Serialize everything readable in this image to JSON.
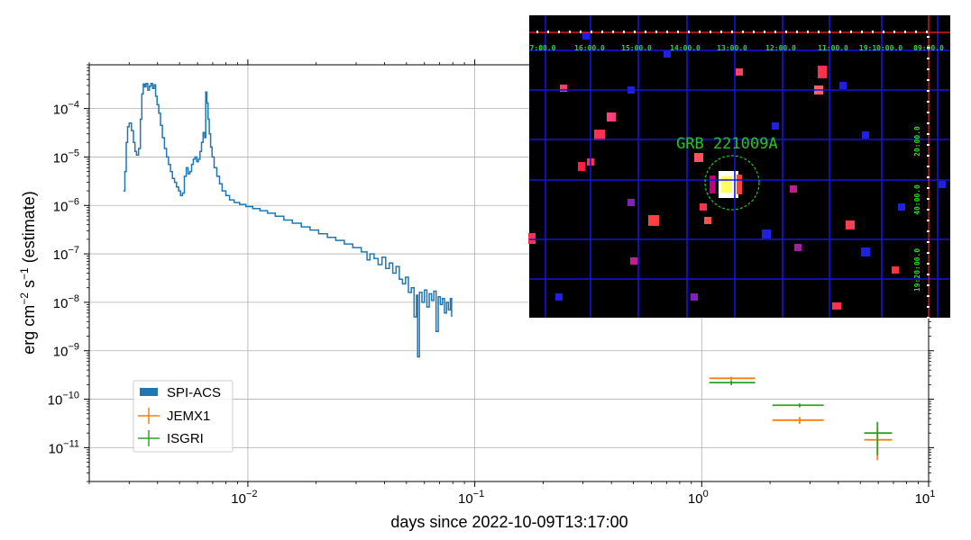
{
  "chart_data": {
    "type": "line",
    "x_scale": "log",
    "y_scale": "log",
    "xlim": [
      0.002,
      10
    ],
    "ylim": [
      2e-12,
      0.0008
    ],
    "xlabel": "days since 2022-10-09T13:17:00",
    "ylabel_parts": {
      "main": "erg cm",
      "exp1": "−2",
      "mid": " s",
      "exp2": "−1",
      "suffix": " (estimate)"
    },
    "x_ticks": [
      {
        "value": 0.01,
        "base": "10",
        "exp": "−2"
      },
      {
        "value": 0.1,
        "base": "10",
        "exp": "−1"
      },
      {
        "value": 1,
        "base": "10",
        "exp": "0"
      },
      {
        "value": 10,
        "base": "10",
        "exp": "1"
      }
    ],
    "y_ticks": [
      {
        "value": 0.0001,
        "base": "10",
        "exp": "−4"
      },
      {
        "value": 1e-05,
        "base": "10",
        "exp": "−5"
      },
      {
        "value": 1e-06,
        "base": "10",
        "exp": "−6"
      },
      {
        "value": 1e-07,
        "base": "10",
        "exp": "−7"
      },
      {
        "value": 1e-08,
        "base": "10",
        "exp": "−8"
      },
      {
        "value": 1e-09,
        "base": "10",
        "exp": "−9"
      },
      {
        "value": 1e-10,
        "base": "10",
        "exp": "−10"
      },
      {
        "value": 1e-11,
        "base": "10",
        "exp": "−11"
      }
    ],
    "grid": true,
    "legend_position": "lower-left",
    "series": [
      {
        "name": "SPI-ACS",
        "style": "step",
        "color": "#1f77b4",
        "points": [
          [
            0.00283,
            2e-06
          ],
          [
            0.00287,
            5e-06
          ],
          [
            0.00291,
            2e-05
          ],
          [
            0.00295,
            4.2e-05
          ],
          [
            0.003,
            5e-05
          ],
          [
            0.00307,
            3.5e-05
          ],
          [
            0.00313,
            2e-05
          ],
          [
            0.00318,
            1.3e-05
          ],
          [
            0.00323,
            1.1e-05
          ],
          [
            0.0033,
            1.5e-05
          ],
          [
            0.00336,
            6e-05
          ],
          [
            0.00341,
            0.0002
          ],
          [
            0.00346,
            0.00032
          ],
          [
            0.00351,
            0.00028
          ],
          [
            0.00356,
            0.00033
          ],
          [
            0.00362,
            0.00024
          ],
          [
            0.00368,
            0.00029
          ],
          [
            0.00374,
            0.00033
          ],
          [
            0.0038,
            0.00026
          ],
          [
            0.00386,
            0.00031
          ],
          [
            0.00392,
            0.00018
          ],
          [
            0.00398,
            0.00012
          ],
          [
            0.00405,
            8e-05
          ],
          [
            0.00412,
            4.5e-05
          ],
          [
            0.0042,
            2.5e-05
          ],
          [
            0.00429,
            1.5e-05
          ],
          [
            0.00438,
            1e-05
          ],
          [
            0.00447,
            7e-06
          ],
          [
            0.00456,
            5e-06
          ],
          [
            0.00465,
            3.6e-06
          ],
          [
            0.00475,
            3e-06
          ],
          [
            0.00485,
            2.4e-06
          ],
          [
            0.00495,
            2e-06
          ],
          [
            0.00505,
            1.6e-06
          ],
          [
            0.00515,
            1.8e-06
          ],
          [
            0.00525,
            4e-06
          ],
          [
            0.00535,
            6e-06
          ],
          [
            0.00545,
            4.5e-06
          ],
          [
            0.00555,
            5e-06
          ],
          [
            0.00565,
            7e-06
          ],
          [
            0.00575,
            9e-06
          ],
          [
            0.00585,
            1e-05
          ],
          [
            0.00595,
            8e-06
          ],
          [
            0.00605,
            9e-06
          ],
          [
            0.00615,
            1.3e-05
          ],
          [
            0.00625,
            2e-05
          ],
          [
            0.00635,
            3.2e-05
          ],
          [
            0.00645,
            2.5e-05
          ],
          [
            0.00652,
            0.00022
          ],
          [
            0.0066,
            0.00013
          ],
          [
            0.00668,
            6e-05
          ],
          [
            0.00676,
            3e-05
          ],
          [
            0.00685,
            1.6e-05
          ],
          [
            0.00695,
            1e-05
          ],
          [
            0.0071,
            6e-06
          ],
          [
            0.0073,
            4e-06
          ],
          [
            0.0075,
            2.8e-06
          ],
          [
            0.0077,
            2e-06
          ],
          [
            0.008,
            1.6e-06
          ],
          [
            0.0083,
            1.3e-06
          ],
          [
            0.0087,
            1.15e-06
          ],
          [
            0.0092,
            1.05e-06
          ],
          [
            0.0098,
            9.5e-07
          ],
          [
            0.0105,
            8.6e-07
          ],
          [
            0.0113,
            7.8e-07
          ],
          [
            0.0122,
            6.9e-07
          ],
          [
            0.0132,
            6e-07
          ],
          [
            0.0144,
            5e-07
          ],
          [
            0.0157,
            4.3e-07
          ],
          [
            0.0172,
            3.6e-07
          ],
          [
            0.0188,
            3.1e-07
          ],
          [
            0.0205,
            2.6e-07
          ],
          [
            0.0224,
            2.2e-07
          ],
          [
            0.0244,
            1.9e-07
          ],
          [
            0.0266,
            1.6e-07
          ],
          [
            0.029,
            1.35e-07
          ],
          [
            0.0316,
            1.1e-07
          ],
          [
            0.0335,
            7.5e-08
          ],
          [
            0.0345,
            1e-07
          ],
          [
            0.036,
            8e-08
          ],
          [
            0.0375,
            6e-08
          ],
          [
            0.039,
            8.5e-08
          ],
          [
            0.0405,
            5e-08
          ],
          [
            0.042,
            6.5e-08
          ],
          [
            0.0435,
            4e-08
          ],
          [
            0.045,
            5.5e-08
          ],
          [
            0.0465,
            3e-08
          ],
          [
            0.048,
            2.4e-08
          ],
          [
            0.0495,
            3.3e-08
          ],
          [
            0.051,
            1.6e-08
          ],
          [
            0.0525,
            2e-08
          ],
          [
            0.054,
            5e-09
          ],
          [
            0.0553,
            1.4e-08
          ],
          [
            0.056,
            7.5e-10
          ],
          [
            0.057,
            1.6e-08
          ],
          [
            0.0585,
            1e-08
          ],
          [
            0.06,
            1.8e-08
          ],
          [
            0.0615,
            8e-09
          ],
          [
            0.063,
            1.5e-08
          ],
          [
            0.0645,
            1.1e-08
          ],
          [
            0.066,
            1.7e-08
          ],
          [
            0.0675,
            2.5e-09
          ],
          [
            0.069,
            1.3e-08
          ],
          [
            0.0705,
            9e-09
          ],
          [
            0.072,
            1.2e-08
          ],
          [
            0.0735,
            6e-09
          ],
          [
            0.075,
            1e-08
          ],
          [
            0.0765,
            7e-09
          ],
          [
            0.078,
            1.2e-08
          ],
          [
            0.079,
            5e-09
          ]
        ]
      },
      {
        "name": "JEMX1",
        "style": "errorbar",
        "color": "#ff7f0e",
        "points": [
          {
            "x": 1.35,
            "xlo": 1.08,
            "xhi": 1.72,
            "y": 2.7e-10,
            "ylo": 2.5e-10,
            "yhi": 2.9e-10
          },
          {
            "x": 2.7,
            "xlo": 2.05,
            "xhi": 3.45,
            "y": 3.7e-11,
            "ylo": 3.1e-11,
            "yhi": 4.3e-11
          },
          {
            "x": 5.95,
            "xlo": 5.2,
            "xhi": 6.9,
            "y": 1.45e-11,
            "ylo": 5.5e-12,
            "yhi": 2.6e-11
          }
        ]
      },
      {
        "name": "ISGRI",
        "style": "errorbar",
        "color": "#2ca02c",
        "points": [
          {
            "x": 1.35,
            "xlo": 1.08,
            "xhi": 1.72,
            "y": 2.2e-10,
            "ylo": 1.95e-10,
            "yhi": 2.45e-10
          },
          {
            "x": 2.7,
            "xlo": 2.05,
            "xhi": 3.45,
            "y": 7.5e-11,
            "ylo": 6.8e-11,
            "yhi": 8.2e-11
          },
          {
            "x": 5.95,
            "xlo": 5.2,
            "xhi": 6.9,
            "y": 2e-11,
            "ylo": 7e-12,
            "yhi": 3.4e-11
          }
        ]
      }
    ]
  },
  "inset": {
    "label": "GRB 221009A",
    "ra_labels": [
      "7:00.0",
      "16:00.0",
      "15:00.0",
      "14:00.0",
      "13:00.0",
      "12:00.0",
      "11:00.0",
      "19:10:00.0",
      "09:00.0"
    ],
    "dec_labels": [
      "20:00.0",
      "40:00.0",
      "19:20:00.0"
    ],
    "colors": {
      "background": "#000000",
      "grid": "#1515e0",
      "circle": "#22c422",
      "edge": "#ff2020"
    }
  }
}
